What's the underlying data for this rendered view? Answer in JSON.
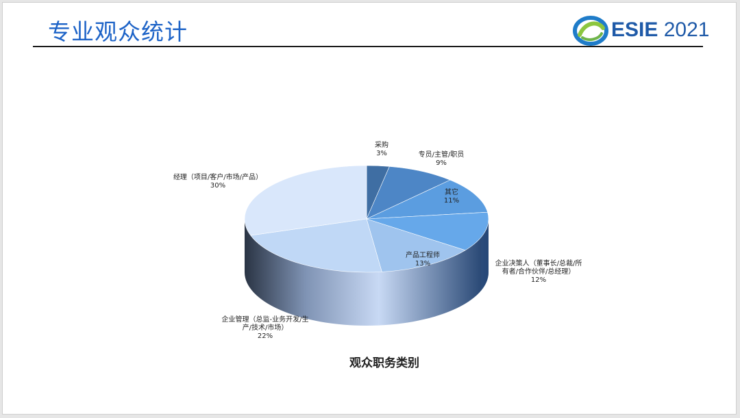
{
  "slide": {
    "title": "专业观众统计",
    "logo": {
      "brand": "ESIE",
      "year": "2021",
      "icon": "swirl-logo-icon",
      "colors": {
        "text": "#1f5aa8",
        "swirl_blue": "#1f7cc9",
        "swirl_green": "#8cc63f"
      }
    },
    "title_color": "#1d63c7"
  },
  "chart_data": {
    "type": "pie",
    "style": "3d",
    "title": "观众职务类别",
    "unit": "%",
    "slices": [
      {
        "name": "采购",
        "value": 3,
        "label_lines": [
          "采购"
        ],
        "pct": "3%"
      },
      {
        "name": "专员/主管/职员",
        "value": 9,
        "label_lines": [
          "专员/主管/职员"
        ],
        "pct": "9%"
      },
      {
        "name": "其它",
        "value": 11,
        "label_lines": [
          "其它"
        ],
        "pct": "11%"
      },
      {
        "name": "企业决策人（董事长/总裁/所有者/合作伙伴/总经理）",
        "value": 12,
        "label_lines": [
          "企业决策人（董事长/总裁/所",
          "有者/合作伙伴/总经理）"
        ],
        "pct": "12%"
      },
      {
        "name": "产品工程师",
        "value": 13,
        "label_lines": [
          "产品工程师"
        ],
        "pct": "13%"
      },
      {
        "name": "企业管理（总监-业务开发/生产/技术/市场）",
        "value": 22,
        "label_lines": [
          "企业管理（总监-业务开发/生",
          "产/技术/市场）"
        ],
        "pct": "22%"
      },
      {
        "name": "经理（项目/客户/市场/产品）",
        "value": 30,
        "label_lines": [
          "经理（项目/客户/市场/产品）"
        ],
        "pct": "30%"
      }
    ],
    "colors": [
      "#3f6ea3",
      "#4d86c6",
      "#5b9de0",
      "#66a8ea",
      "#9fc4ee",
      "#c0d8f6",
      "#d9e7fb"
    ],
    "legend": "none"
  }
}
